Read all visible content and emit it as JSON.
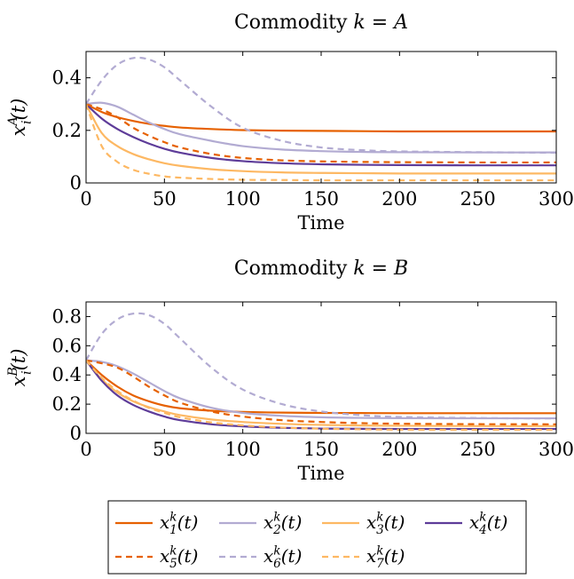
{
  "chart_data": [
    {
      "type": "line",
      "title": "Commodity k = A",
      "xlabel": "Time",
      "ylabel": "x_i^A(t)",
      "xlim": [
        0,
        300
      ],
      "ylim": [
        0,
        0.5
      ],
      "xticks": [
        0,
        50,
        100,
        150,
        200,
        250,
        300
      ],
      "xtick_labels": [
        "0",
        "50",
        "100",
        "150",
        "200",
        "250",
        "300"
      ],
      "yticks": [
        0,
        0.2,
        0.4
      ],
      "ytick_labels": [
        "0",
        "0.2",
        "0.4"
      ],
      "x": [
        0,
        10,
        20,
        30,
        40,
        50,
        60,
        80,
        100,
        125,
        150,
        175,
        200,
        250,
        300
      ],
      "series": [
        {
          "name": "x_1^k(t)",
          "values": [
            0.3,
            0.27,
            0.25,
            0.236,
            0.225,
            0.217,
            0.211,
            0.205,
            0.201,
            0.199,
            0.198,
            0.197,
            0.196,
            0.196,
            0.196
          ]
        },
        {
          "name": "x_2^k(t)",
          "values": [
            0.3,
            0.305,
            0.29,
            0.26,
            0.23,
            0.205,
            0.185,
            0.16,
            0.14,
            0.127,
            0.121,
            0.118,
            0.117,
            0.116,
            0.116
          ]
        },
        {
          "name": "x_3^k(t)",
          "values": [
            0.3,
            0.19,
            0.14,
            0.11,
            0.09,
            0.075,
            0.065,
            0.052,
            0.045,
            0.04,
            0.038,
            0.037,
            0.036,
            0.036,
            0.036
          ]
        },
        {
          "name": "x_4^k(t)",
          "values": [
            0.3,
            0.245,
            0.205,
            0.175,
            0.15,
            0.13,
            0.115,
            0.095,
            0.083,
            0.075,
            0.071,
            0.069,
            0.068,
            0.067,
            0.067
          ]
        },
        {
          "name": "x_5^k(t)",
          "values": [
            0.3,
            0.28,
            0.25,
            0.21,
            0.18,
            0.155,
            0.135,
            0.11,
            0.095,
            0.086,
            0.082,
            0.08,
            0.079,
            0.078,
            0.078
          ]
        },
        {
          "name": "x_6^k(t)",
          "values": [
            0.3,
            0.39,
            0.45,
            0.475,
            0.47,
            0.44,
            0.39,
            0.29,
            0.21,
            0.16,
            0.135,
            0.125,
            0.12,
            0.117,
            0.115
          ]
        },
        {
          "name": "x_7^k(t)",
          "values": [
            0.3,
            0.14,
            0.08,
            0.05,
            0.035,
            0.025,
            0.02,
            0.015,
            0.012,
            0.011,
            0.01,
            0.01,
            0.01,
            0.01,
            0.01
          ]
        }
      ]
    },
    {
      "type": "line",
      "title": "Commodity k = B",
      "xlabel": "Time",
      "ylabel": "x_i^B(t)",
      "xlim": [
        0,
        300
      ],
      "ylim": [
        0,
        0.9
      ],
      "xticks": [
        0,
        50,
        100,
        150,
        200,
        250,
        300
      ],
      "xtick_labels": [
        "0",
        "50",
        "100",
        "150",
        "200",
        "250",
        "300"
      ],
      "yticks": [
        0,
        0.2,
        0.4,
        0.6,
        0.8
      ],
      "ytick_labels": [
        "0",
        "0.2",
        "0.4",
        "0.6",
        "0.8"
      ],
      "x": [
        0,
        10,
        20,
        30,
        40,
        50,
        60,
        80,
        100,
        125,
        150,
        175,
        200,
        250,
        300
      ],
      "series": [
        {
          "name": "x_1^k(t)",
          "values": [
            0.5,
            0.4,
            0.32,
            0.26,
            0.22,
            0.19,
            0.172,
            0.155,
            0.147,
            0.142,
            0.14,
            0.139,
            0.138,
            0.138,
            0.138
          ]
        },
        {
          "name": "x_2^k(t)",
          "values": [
            0.5,
            0.49,
            0.46,
            0.41,
            0.35,
            0.29,
            0.24,
            0.175,
            0.14,
            0.12,
            0.11,
            0.106,
            0.104,
            0.103,
            0.103
          ]
        },
        {
          "name": "x_3^k(t)",
          "values": [
            0.5,
            0.37,
            0.28,
            0.22,
            0.18,
            0.15,
            0.125,
            0.095,
            0.078,
            0.065,
            0.058,
            0.054,
            0.052,
            0.05,
            0.05
          ]
        },
        {
          "name": "x_4^k(t)",
          "values": [
            0.5,
            0.36,
            0.26,
            0.195,
            0.15,
            0.115,
            0.09,
            0.062,
            0.048,
            0.038,
            0.033,
            0.031,
            0.03,
            0.03,
            0.03
          ]
        },
        {
          "name": "x_5^k(t)",
          "values": [
            0.5,
            0.48,
            0.45,
            0.39,
            0.32,
            0.26,
            0.21,
            0.15,
            0.115,
            0.09,
            0.078,
            0.07,
            0.066,
            0.063,
            0.062
          ]
        },
        {
          "name": "x_6^k(t)",
          "values": [
            0.5,
            0.68,
            0.78,
            0.82,
            0.81,
            0.75,
            0.65,
            0.45,
            0.3,
            0.2,
            0.15,
            0.125,
            0.112,
            0.105,
            0.102
          ]
        },
        {
          "name": "x_7^k(t)",
          "values": [
            0.5,
            0.38,
            0.29,
            0.225,
            0.175,
            0.14,
            0.11,
            0.075,
            0.055,
            0.04,
            0.032,
            0.028,
            0.025,
            0.024,
            0.024
          ]
        }
      ]
    }
  ],
  "legend": {
    "placement": "bottom",
    "entries": [
      "x_1^k(t)",
      "x_2^k(t)",
      "x_3^k(t)",
      "x_4^k(t)",
      "x_5^k(t)",
      "x_6^k(t)",
      "x_7^k(t)"
    ]
  },
  "styles": {
    "x_1^k(t)": {
      "color": "#e66101",
      "dash": "solid"
    },
    "x_2^k(t)": {
      "color": "#b2abd2",
      "dash": "solid"
    },
    "x_3^k(t)": {
      "color": "#fdb863",
      "dash": "solid"
    },
    "x_4^k(t)": {
      "color": "#5e3c99",
      "dash": "solid"
    },
    "x_5^k(t)": {
      "color": "#e66101",
      "dash": "dashed"
    },
    "x_6^k(t)": {
      "color": "#b2abd2",
      "dash": "dashed"
    },
    "x_7^k(t)": {
      "color": "#fdb863",
      "dash": "dashed"
    }
  }
}
